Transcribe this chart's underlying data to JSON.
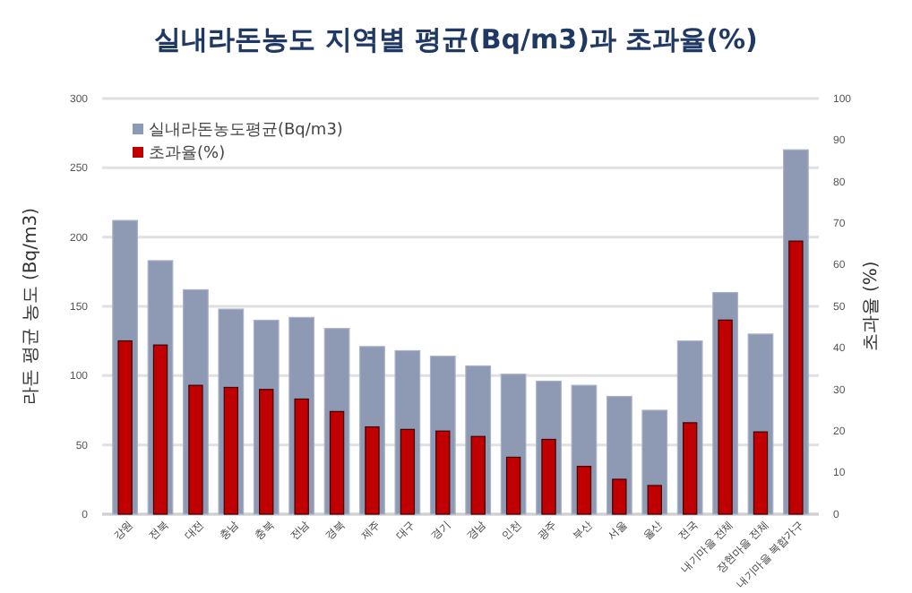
{
  "chart_data": {
    "type": "bar",
    "title": "실내라돈농도 지역별 평균(Bq/m3)과 초과율(%)",
    "ylabel": "라돈 평균 농도 (Bq/m3)",
    "y2label": "초과율 (%)",
    "categories": [
      "강원",
      "전북",
      "대전",
      "충남",
      "충북",
      "전남",
      "경북",
      "제주",
      "대구",
      "경기",
      "경남",
      "인천",
      "광주",
      "부산",
      "서울",
      "울산",
      "전국",
      "내기마을 전체",
      "장현마을 전체",
      "내기마을 복합가구"
    ],
    "series": [
      {
        "name": "실내라돈농도평균(Bq/m3)",
        "color": "#8e9ab3",
        "values": [
          212,
          183,
          162,
          148,
          140,
          142,
          134,
          121,
          118,
          114,
          107,
          101,
          96,
          93,
          85,
          75,
          125,
          160,
          130,
          263
        ]
      },
      {
        "name": "초과율(%)",
        "color": "#c00000",
        "axis": "y2",
        "values": [
          41.7,
          40.7,
          31,
          30.5,
          30,
          27.7,
          24.7,
          21,
          20.4,
          20,
          18.7,
          13.7,
          18,
          11.5,
          8.4,
          6.9,
          22,
          46.7,
          19.8,
          65.7
        ]
      }
    ],
    "ylim": [
      0,
      300
    ],
    "yticks": [
      0,
      50,
      100,
      150,
      200,
      250,
      300
    ],
    "y2lim": [
      0,
      100
    ],
    "y2ticks": [
      0,
      10,
      20,
      30,
      40,
      50,
      60,
      70,
      80,
      90,
      100
    ],
    "grid": "y",
    "legend": "top left"
  }
}
